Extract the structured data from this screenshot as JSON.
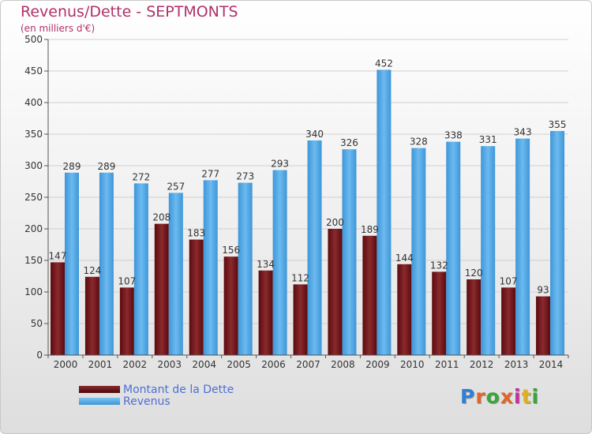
{
  "title": "Revenus/Dette - SEPTMONTS",
  "subtitle": "(en milliers d'€)",
  "logo": "Proxiti",
  "colors": {
    "dette": "#6b0f14",
    "revenus": "#4aa6e8",
    "title": "#b0306a",
    "legend_text": "#4d6fd6"
  },
  "chart_data": {
    "type": "bar",
    "title": "Revenus/Dette - SEPTMONTS",
    "subtitle": "(en milliers d'€)",
    "categories": [
      "2000",
      "2001",
      "2002",
      "2003",
      "2004",
      "2005",
      "2006",
      "2007",
      "2008",
      "2009",
      "2010",
      "2011",
      "2012",
      "2013",
      "2014"
    ],
    "series": [
      {
        "name": "Montant de la Dette",
        "values": [
          147,
          124,
          107,
          208,
          183,
          156,
          134,
          112,
          200,
          189,
          144,
          132,
          120,
          107,
          93
        ]
      },
      {
        "name": "Revenus",
        "values": [
          289,
          289,
          272,
          257,
          277,
          273,
          293,
          340,
          326,
          452,
          328,
          338,
          331,
          343,
          355
        ]
      }
    ],
    "yticks": [
      0,
      50,
      100,
      150,
      200,
      250,
      300,
      350,
      400,
      450,
      500
    ],
    "ylim": [
      0,
      500
    ],
    "grid": true,
    "legend_position": "bottom-left"
  }
}
